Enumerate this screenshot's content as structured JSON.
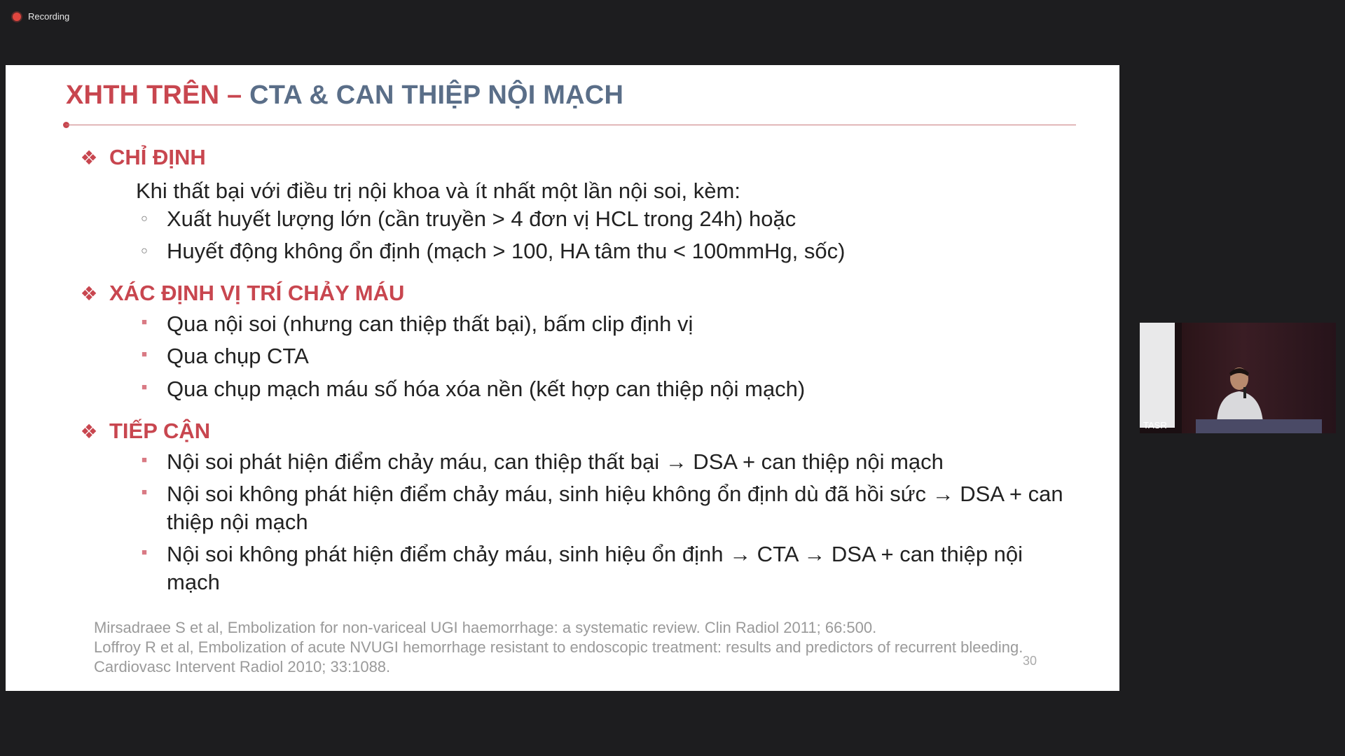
{
  "recording": {
    "label": "Recording"
  },
  "slide": {
    "title_part1": "XHTH TRÊN –",
    "title_part2": "CTA & CAN THIỆP NỘI MẠCH",
    "sections": [
      {
        "title": "CHỈ ĐỊNH",
        "intro": "Khi thất bại với điều trị nội khoa và ít nhất một lần nội soi, kèm:"
      },
      {
        "title": "XÁC ĐỊNH VỊ TRÍ CHẢY MÁU"
      },
      {
        "title": "TIẾP CẬN"
      }
    ],
    "bullets": [
      "Xuất huyết lượng lớn (cần truyền > 4 đơn vị HCL trong 24h) hoặc",
      "Huyết động không ổn định (mạch > 100, HA tâm thu < 100mmHg, sốc)",
      "Qua nội soi (nhưng can thiệp thất bại), bấm clip định vị",
      "Qua chụp CTA",
      "Qua chụp mạch máu số hóa xóa nền (kết hợp can thiệp nội mạch)",
      "Nội soi phát hiện điểm chảy máu, can thiệp thất bại → DSA + can thiệp nội mạch",
      "Nội soi không phát hiện điểm chảy máu, sinh hiệu không ổn định dù đã hồi sức → DSA + can thiệp nội mạch",
      "Nội soi không phát hiện điểm chảy máu, sinh hiệu ổn định → CTA → DSA + can thiệp nội mạch"
    ],
    "references": [
      "Mirsadraee S et al, Embolization for non-variceal UGI haemorrhage: a systematic review. Clin Radiol 2011; 66:500.",
      "Loffroy R et al, Embolization of acute NVUGI hemorrhage resistant to endoscopic treatment: results and predictors of recurrent bleeding. Cardiovasc Intervent Radiol 2010; 33:1088."
    ],
    "page_number": "30",
    "diamond_glyph": "❖",
    "circle_glyph": "○",
    "square_glyph": "■"
  },
  "video": {
    "participant_label": "TASR"
  },
  "colors": {
    "accent_red": "#c8464f",
    "title_blue": "#5a6e88"
  }
}
